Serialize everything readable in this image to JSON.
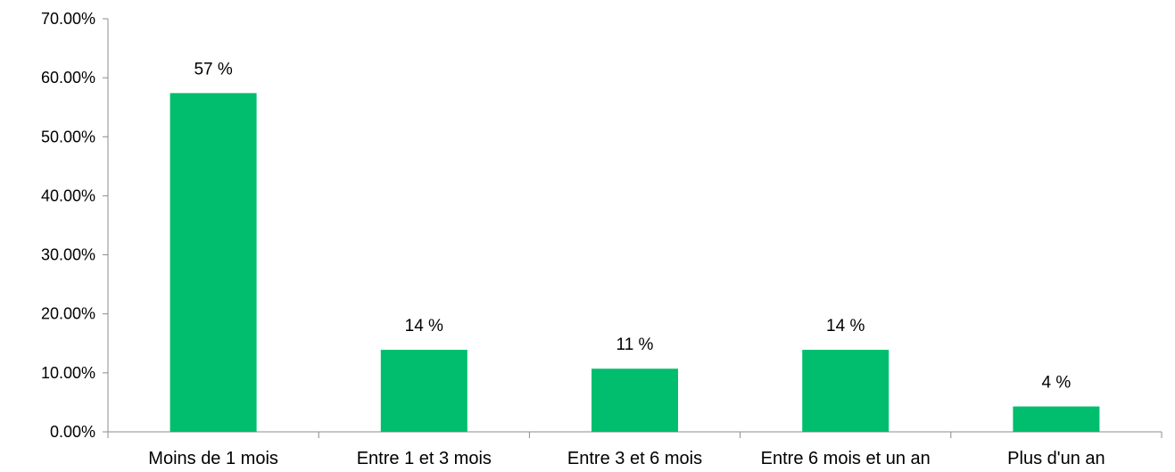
{
  "chart_data": {
    "type": "bar",
    "categories": [
      "Moins de 1 mois",
      "Entre 1 et 3 mois",
      "Entre 3 et 6 mois",
      "Entre 6 mois et un an",
      "Plus d'un an"
    ],
    "values": [
      57.4,
      13.9,
      10.7,
      13.9,
      4.3
    ],
    "data_labels": [
      "57 %",
      "14 %",
      "11 %",
      "14 %",
      "4 %"
    ],
    "title": "",
    "xlabel": "",
    "ylabel": "",
    "ylim": [
      0,
      70
    ],
    "y_ticks": [
      0,
      10,
      20,
      30,
      40,
      50,
      60,
      70
    ],
    "y_tick_labels": [
      "0.00%",
      "10.00%",
      "20.00%",
      "30.00%",
      "40.00%",
      "50.00%",
      "60.00%",
      "70.00%"
    ],
    "grid": false,
    "legend": "none",
    "bar_color": "#00BE6E"
  }
}
